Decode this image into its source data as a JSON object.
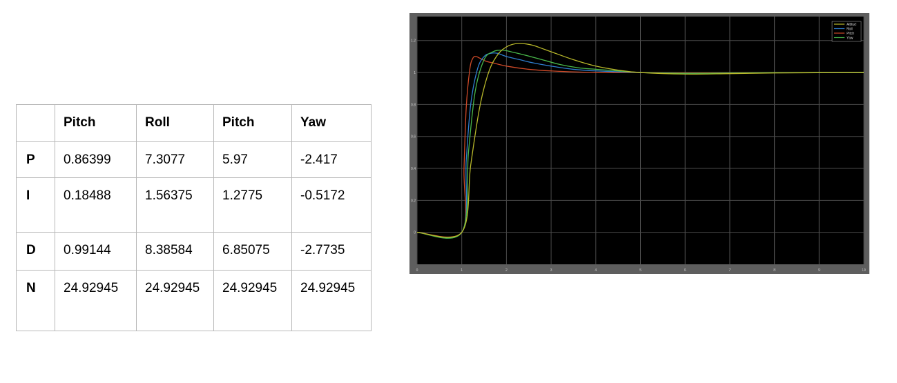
{
  "table": {
    "headers": [
      "",
      "Pitch",
      "Roll",
      "Pitch",
      "Yaw"
    ],
    "rows": [
      {
        "label": "P",
        "values": [
          "0.86399",
          "7.3077",
          "5.97",
          "-2.417"
        ]
      },
      {
        "label": "I",
        "values": [
          "0.18488",
          "1.56375",
          "1.2775",
          "-0.5172"
        ]
      },
      {
        "label": "D",
        "values": [
          "0.99144",
          "8.38584",
          "6.85075",
          "-2.7735"
        ]
      },
      {
        "label": "N",
        "values": [
          "24.92945",
          "24.92945",
          "24.92945",
          "24.92945"
        ]
      }
    ]
  },
  "chart_data": {
    "type": "line",
    "xlim": [
      0,
      10
    ],
    "ylim": [
      -0.2,
      1.35
    ],
    "x_ticks": [
      "0",
      "1",
      "2",
      "3",
      "4",
      "5",
      "6",
      "7",
      "8",
      "9",
      "10"
    ],
    "y_ticks": [
      "0",
      "0.2",
      "0.4",
      "0.6",
      "0.8",
      "1",
      "1.2"
    ],
    "grid": true,
    "legend_position": "top-right",
    "colors": {
      "Altitud": "#b8b82a",
      "Roll": "#2f7fd0",
      "Pitch": "#d04a28",
      "Yaw": "#49b84a",
      "background": "#000000",
      "frame": "#5e5e5e",
      "grid": "#4a4a4a"
    },
    "series": [
      {
        "name": "Altitud",
        "x": [
          0,
          1,
          1.2,
          1.4,
          1.6,
          1.8,
          2.0,
          2.2,
          2.4,
          2.6,
          2.8,
          3.0,
          3.5,
          4.0,
          4.5,
          5.0,
          6,
          7,
          8,
          9,
          10
        ],
        "y": [
          0,
          0,
          0.42,
          0.78,
          1.0,
          1.11,
          1.16,
          1.18,
          1.18,
          1.17,
          1.15,
          1.13,
          1.08,
          1.04,
          1.015,
          1.0,
          0.99,
          0.993,
          0.997,
          0.999,
          1.0
        ]
      },
      {
        "name": "Roll",
        "x": [
          0,
          1,
          1.1,
          1.2,
          1.35,
          1.5,
          1.65,
          1.8,
          2.0,
          2.3,
          2.6,
          3.0,
          3.5,
          4.0,
          5.0,
          6,
          7,
          8,
          9,
          10
        ],
        "y": [
          0,
          0,
          0.45,
          0.8,
          1.02,
          1.1,
          1.12,
          1.12,
          1.1,
          1.08,
          1.06,
          1.04,
          1.02,
          1.01,
          1.0,
          0.995,
          0.997,
          0.999,
          1.0,
          1.0
        ]
      },
      {
        "name": "Pitch",
        "x": [
          0,
          1,
          1.05,
          1.1,
          1.18,
          1.25,
          1.32,
          1.4,
          1.55,
          1.7,
          2.0,
          2.5,
          3.0,
          4.0,
          5.0,
          6,
          7,
          8,
          9,
          10
        ],
        "y": [
          0,
          0,
          0.4,
          0.78,
          1.02,
          1.09,
          1.1,
          1.09,
          1.07,
          1.06,
          1.04,
          1.02,
          1.01,
          1.0,
          1.0,
          0.998,
          0.999,
          1.0,
          1.0,
          1.0
        ]
      },
      {
        "name": "Yaw",
        "x": [
          0,
          1,
          1.15,
          1.3,
          1.5,
          1.7,
          1.9,
          2.1,
          2.4,
          2.8,
          3.2,
          3.6,
          4.0,
          4.5,
          5.0,
          6,
          7,
          8,
          9,
          10
        ],
        "y": [
          0,
          0,
          0.5,
          0.88,
          1.08,
          1.13,
          1.14,
          1.13,
          1.11,
          1.08,
          1.05,
          1.03,
          1.02,
          1.01,
          1.0,
          0.995,
          0.997,
          0.999,
          1.0,
          1.0
        ]
      }
    ]
  }
}
